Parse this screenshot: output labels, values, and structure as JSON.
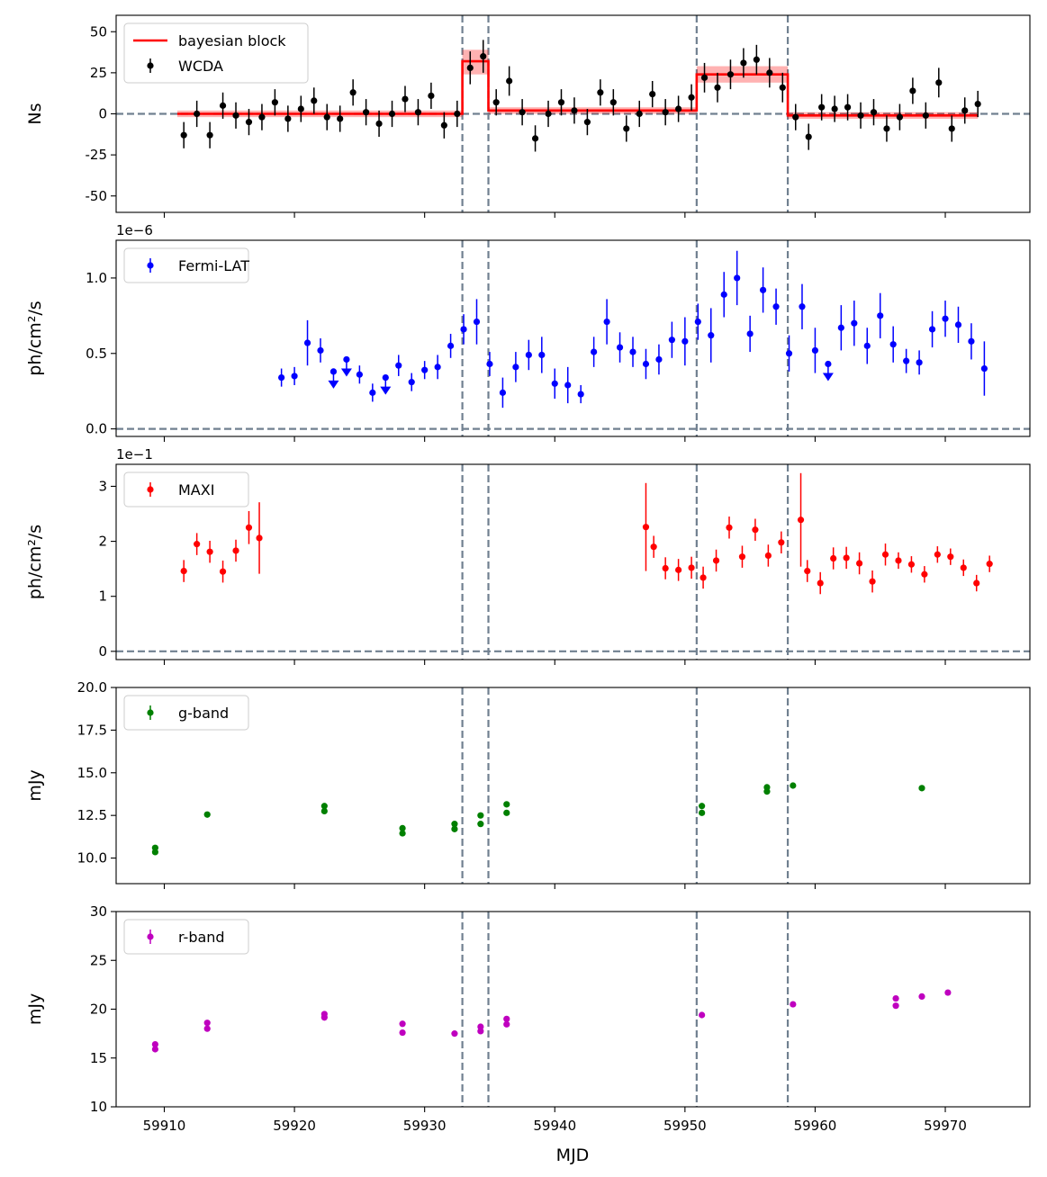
{
  "figure": {
    "xlabel": "MJD",
    "xlim": [
      59906.3,
      59976.5
    ],
    "xticks": [
      59910,
      59920,
      59930,
      59940,
      59950,
      59960,
      59970
    ],
    "vlines": [
      59932.9,
      59934.9,
      59950.9,
      59957.9
    ],
    "vline_color": "#708090"
  },
  "chart_data": [
    {
      "type": "scatter",
      "panel": "wcda",
      "ylabel": "Ns",
      "ylim": [
        -60,
        60
      ],
      "yticks": [
        -50,
        -25,
        0,
        25,
        50
      ],
      "hline": 0,
      "legend": "top-left",
      "legend_entries": [
        "bayesian block",
        "WCDA"
      ],
      "series": [
        {
          "name": "WCDA",
          "color": "#000000",
          "x": [
            59911.5,
            59912.5,
            59913.5,
            59914.5,
            59915.5,
            59916.5,
            59917.5,
            59918.5,
            59919.5,
            59920.5,
            59921.5,
            59922.5,
            59923.5,
            59924.5,
            59925.5,
            59926.5,
            59927.5,
            59928.5,
            59929.5,
            59930.5,
            59931.5,
            59932.5,
            59933.5,
            59934.5,
            59935.5,
            59936.5,
            59937.5,
            59938.5,
            59939.5,
            59940.5,
            59941.5,
            59942.5,
            59943.5,
            59944.5,
            59945.5,
            59946.5,
            59947.5,
            59948.5,
            59949.5,
            59950.5,
            59951.5,
            59952.5,
            59953.5,
            59954.5,
            59955.5,
            59956.5,
            59957.5,
            59958.5,
            59959.5,
            59960.5,
            59961.5,
            59962.5,
            59963.5,
            59964.5,
            59965.5,
            59966.5,
            59967.5,
            59968.5,
            59969.5,
            59970.5,
            59971.5,
            59972.5
          ],
          "y": [
            -13,
            0,
            -13,
            5,
            -1,
            -5,
            -2,
            7,
            -3,
            3,
            8,
            -2,
            -3,
            13,
            1,
            -6,
            0,
            9,
            1,
            11,
            -7,
            0,
            28,
            35,
            7,
            20,
            1,
            -15,
            0,
            7,
            2,
            -5,
            13,
            7,
            -9,
            0,
            12,
            1,
            3,
            10,
            22,
            16,
            24,
            31,
            33,
            25,
            16,
            -2,
            -14,
            4,
            3,
            4,
            -1,
            1,
            -9,
            -2,
            14,
            -1,
            19,
            -9,
            2,
            6
          ],
          "yerr": [
            8,
            8,
            8,
            8,
            8,
            8,
            8,
            8,
            8,
            8,
            8,
            8,
            8,
            8,
            8,
            8,
            8,
            8,
            8,
            8,
            8,
            8,
            10,
            10,
            8,
            9,
            8,
            8,
            8,
            8,
            8,
            8,
            8,
            8,
            8,
            8,
            8,
            8,
            8,
            8,
            9,
            9,
            9,
            9,
            9,
            9,
            9,
            8,
            8,
            8,
            8,
            8,
            8,
            8,
            8,
            8,
            8,
            8,
            9,
            8,
            8,
            8
          ]
        }
      ],
      "blocks": {
        "name": "bayesian block",
        "color": "#ff0000",
        "segments": [
          {
            "x0": 59911.0,
            "x1": 59932.9,
            "y": 0,
            "lo": -2,
            "hi": 2
          },
          {
            "x0": 59932.9,
            "x1": 59934.9,
            "y": 32,
            "lo": 24,
            "hi": 39
          },
          {
            "x0": 59934.9,
            "x1": 59950.9,
            "y": 2,
            "lo": 0,
            "hi": 4
          },
          {
            "x0": 59950.9,
            "x1": 59957.9,
            "y": 24,
            "lo": 19,
            "hi": 29
          },
          {
            "x0": 59957.9,
            "x1": 59972.5,
            "y": -1,
            "lo": -3,
            "hi": 1
          }
        ]
      }
    },
    {
      "type": "scatter",
      "panel": "fermi",
      "ylabel": "ph/cm²/s",
      "offset_text": "1e−6",
      "ylim": [
        -0.05,
        1.25
      ],
      "yticks": [
        0.0,
        0.5,
        1.0
      ],
      "ytick_labels": [
        "0.0",
        "0.5",
        "1.0"
      ],
      "hline": 0,
      "legend": "top-left",
      "legend_entries": [
        "Fermi-LAT"
      ],
      "series": [
        {
          "name": "Fermi-LAT",
          "color": "#0000ff",
          "x": [
            59919,
            59920,
            59921,
            59922,
            59923,
            59924,
            59925,
            59926,
            59927,
            59928,
            59929,
            59930,
            59931,
            59932,
            59933,
            59934,
            59935,
            59936,
            59937,
            59938,
            59939,
            59940,
            59941,
            59942,
            59943,
            59944,
            59945,
            59946,
            59947,
            59948,
            59949,
            59950,
            59951,
            59952,
            59953,
            59954,
            59955,
            59956,
            59957,
            59958,
            59959,
            59960,
            59961,
            59962,
            59963,
            59964,
            59965,
            59966,
            59967,
            59968,
            59969,
            59970,
            59971,
            59972,
            59973
          ],
          "y": [
            0.34,
            0.35,
            0.57,
            0.52,
            0.38,
            0.46,
            0.36,
            0.24,
            0.34,
            0.42,
            0.31,
            0.39,
            0.41,
            0.55,
            0.66,
            0.71,
            0.43,
            0.24,
            0.41,
            0.49,
            0.49,
            0.3,
            0.29,
            0.23,
            0.51,
            0.71,
            0.54,
            0.51,
            0.43,
            0.46,
            0.59,
            0.58,
            0.71,
            0.62,
            0.89,
            1.0,
            0.63,
            0.92,
            0.81,
            0.5,
            0.81,
            0.52,
            0.43,
            0.67,
            0.7,
            0.55,
            0.75,
            0.56,
            0.45,
            0.44,
            0.66,
            0.73,
            0.69,
            0.58,
            0.4
          ],
          "yerr": [
            0.06,
            0.06,
            0.15,
            0.08,
            0.0,
            0.0,
            0.06,
            0.06,
            0.0,
            0.07,
            0.06,
            0.06,
            0.08,
            0.08,
            0.1,
            0.15,
            0.08,
            0.1,
            0.1,
            0.1,
            0.12,
            0.1,
            0.12,
            0.06,
            0.1,
            0.15,
            0.1,
            0.1,
            0.1,
            0.1,
            0.12,
            0.16,
            0.12,
            0.18,
            0.15,
            0.18,
            0.12,
            0.15,
            0.12,
            0.12,
            0.15,
            0.15,
            0.0,
            0.15,
            0.15,
            0.12,
            0.15,
            0.12,
            0.08,
            0.08,
            0.12,
            0.12,
            0.12,
            0.12,
            0.18
          ],
          "upper_limits": [
            59923,
            59924,
            59927,
            59961
          ]
        }
      ]
    },
    {
      "type": "scatter",
      "panel": "maxi",
      "ylabel": "ph/cm²/s",
      "offset_text": "1e−1",
      "ylim": [
        -0.15,
        3.4
      ],
      "yticks": [
        0,
        1,
        2,
        3
      ],
      "ytick_labels": [
        "0",
        "1",
        "2",
        "3"
      ],
      "hline": 0,
      "legend": "top-left",
      "legend_entries": [
        "MAXI"
      ],
      "series": [
        {
          "name": "MAXI",
          "color": "#ff0000",
          "x": [
            59911.5,
            59912.5,
            59913.5,
            59914.5,
            59915.5,
            59916.5,
            59917.3,
            59947,
            59947.6,
            59948.5,
            59949.5,
            59950.5,
            59951.4,
            59952.4,
            59953.4,
            59954.4,
            59955.4,
            59956.4,
            59957.4,
            59958.9,
            59959.4,
            59960.4,
            59961.4,
            59962.4,
            59963.4,
            59964.4,
            59965.4,
            59966.4,
            59967.4,
            59968.4,
            59969.4,
            59970.4,
            59971.4,
            59972.4,
            59973.4
          ],
          "y": [
            1.46,
            1.95,
            1.81,
            1.45,
            1.83,
            2.25,
            2.06,
            2.26,
            1.9,
            1.51,
            1.48,
            1.52,
            1.34,
            1.65,
            2.25,
            1.72,
            2.21,
            1.74,
            1.98,
            2.39,
            1.46,
            1.24,
            1.69,
            1.7,
            1.6,
            1.27,
            1.76,
            1.65,
            1.58,
            1.4,
            1.76,
            1.72,
            1.52,
            1.24,
            1.59
          ],
          "yerr": [
            0.2,
            0.2,
            0.2,
            0.2,
            0.2,
            0.3,
            0.65,
            0.8,
            0.2,
            0.2,
            0.2,
            0.2,
            0.2,
            0.2,
            0.2,
            0.2,
            0.2,
            0.2,
            0.2,
            0.85,
            0.2,
            0.2,
            0.2,
            0.2,
            0.2,
            0.2,
            0.2,
            0.15,
            0.15,
            0.15,
            0.15,
            0.15,
            0.15,
            0.15,
            0.15
          ]
        }
      ]
    },
    {
      "type": "scatter",
      "panel": "gband",
      "ylabel": "mJy",
      "ylim": [
        8.5,
        20.0
      ],
      "yticks": [
        10.0,
        12.5,
        15.0,
        17.5,
        20.0
      ],
      "ytick_labels": [
        "10.0",
        "12.5",
        "15.0",
        "17.5",
        "20.0"
      ],
      "legend": "top-left",
      "legend_entries": [
        "g-band"
      ],
      "series": [
        {
          "name": "g-band",
          "color": "#008000",
          "x": [
            59909.3,
            59909.3,
            59913.3,
            59922.3,
            59922.3,
            59928.3,
            59928.3,
            59932.3,
            59932.3,
            59934.3,
            59934.3,
            59936.3,
            59936.3,
            59951.3,
            59951.3,
            59956.3,
            59956.3,
            59958.3,
            59968.2
          ],
          "y": [
            10.6,
            10.35,
            12.55,
            13.05,
            12.75,
            11.75,
            11.45,
            12.0,
            11.7,
            12.5,
            12.0,
            13.15,
            12.65,
            13.05,
            12.65,
            14.15,
            13.9,
            14.25,
            14.1
          ]
        }
      ]
    },
    {
      "type": "scatter",
      "panel": "rband",
      "ylabel": "mJy",
      "ylim": [
        10,
        30
      ],
      "yticks": [
        10,
        15,
        20,
        25,
        30
      ],
      "ytick_labels": [
        "10",
        "15",
        "20",
        "25",
        "30"
      ],
      "legend": "top-left",
      "legend_entries": [
        "r-band"
      ],
      "series": [
        {
          "name": "r-band",
          "color": "#bf00bf",
          "x": [
            59909.3,
            59909.3,
            59913.3,
            59913.3,
            59922.3,
            59922.3,
            59928.3,
            59928.3,
            59932.3,
            59934.3,
            59934.3,
            59936.3,
            59936.3,
            59951.3,
            59958.3,
            59966.2,
            59966.2,
            59968.2,
            59970.2
          ],
          "y": [
            16.4,
            15.9,
            18.6,
            18.0,
            19.5,
            19.15,
            18.5,
            17.6,
            17.5,
            18.2,
            17.75,
            19.0,
            18.45,
            19.4,
            20.5,
            21.1,
            20.35,
            21.3,
            21.7
          ]
        }
      ]
    }
  ]
}
